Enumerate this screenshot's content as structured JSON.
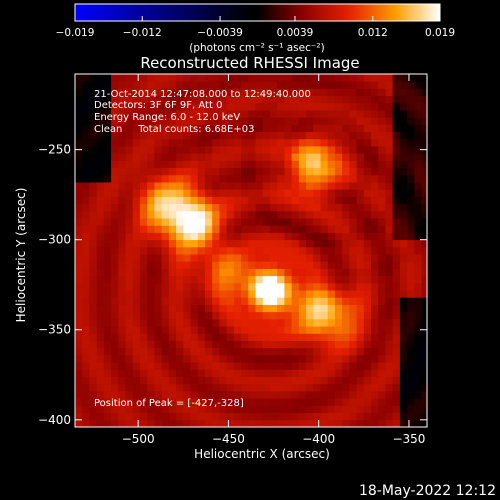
{
  "chart_data": {
    "type": "heatmap",
    "title": "Reconstructed RHESSI Image",
    "xlabel": "Heliocentric X (arcsec)",
    "ylabel": "Heliocentric Y (arcsec)",
    "xlim": [
      -535,
      -340
    ],
    "ylim": [
      -404,
      -208
    ],
    "x_ticks": [
      -500,
      -450,
      -400,
      -350
    ],
    "y_ticks": [
      -250,
      -300,
      -350,
      -400
    ],
    "x_tick_labels": [
      "−500",
      "−450",
      "−400",
      "−350"
    ],
    "y_tick_labels": [
      "−250",
      "−300",
      "−350",
      "−400"
    ],
    "colorbar": {
      "range": [
        -0.019,
        0.019
      ],
      "tick_labels": [
        "−0.019",
        "−0.012",
        "−0.0039",
        "0.0039",
        "0.012",
        "0.019"
      ],
      "tick_values": [
        -0.019,
        -0.012,
        -0.0039,
        0.0039,
        0.012,
        0.019
      ],
      "label": "(photons cm⁻² s⁻¹ asec⁻²)",
      "colormap": "blue-black-red-yellow-white"
    },
    "annotations": [
      "21-Oct-2014 12:47:08.000 to 12:49:40.000",
      "Detectors: 3F 6F 9F, Att 0",
      "Energy Range: 6.0 - 12.0 keV",
      "Clean     Total counts: 6.68E+03"
    ],
    "peak_label": "Position of Peak = [-427,-328]",
    "peak": [
      -427,
      -328
    ],
    "sources": [
      {
        "x": -470,
        "y": -290,
        "intensity": 0.016
      },
      {
        "x": -427,
        "y": -328,
        "intensity": 0.019
      },
      {
        "x": -403,
        "y": -260,
        "intensity": 0.014
      },
      {
        "x": -395,
        "y": -342,
        "intensity": 0.015
      },
      {
        "x": -485,
        "y": -280,
        "intensity": 0.012
      },
      {
        "x": -455,
        "y": -318,
        "intensity": 0.009
      }
    ]
  },
  "footer": {
    "timestamp": "18-May-2022 12:12"
  }
}
